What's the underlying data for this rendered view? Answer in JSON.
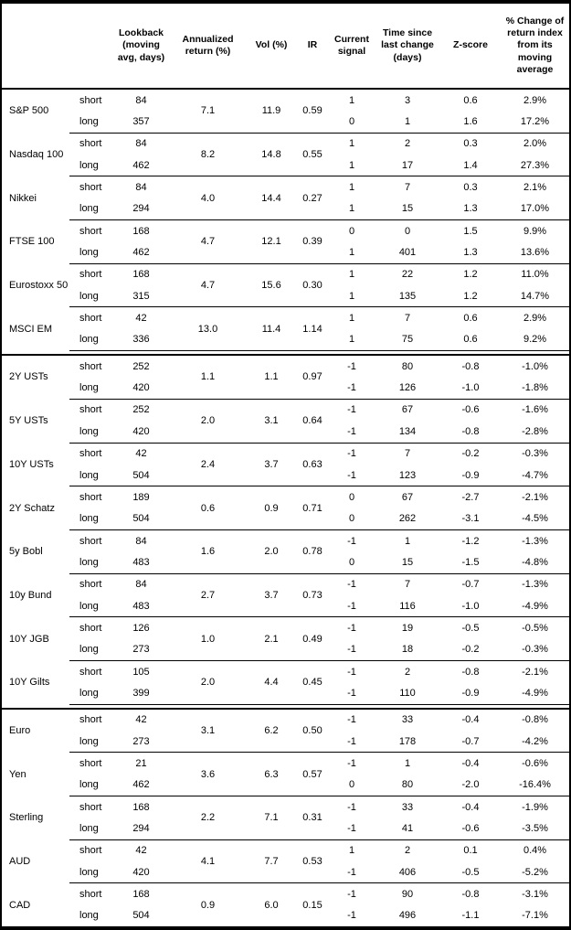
{
  "header": {
    "lookback": "Lookback (moving avg, days)",
    "annualized_return": "Annualized return (%)",
    "vol": "Vol (%)",
    "ir": "IR",
    "current_signal": "Current signal",
    "time_since": "Time since last change (days)",
    "zscore": "Z-score",
    "pct_change": "% Change of return index from its moving average"
  },
  "colors": {
    "border": "#000000",
    "text": "#000000",
    "background": "#ffffff"
  },
  "sections": [
    {
      "id": "equities",
      "assets": [
        {
          "name": "S&P 500",
          "ann_return": "7.1",
          "vol": "11.9",
          "ir": "0.59",
          "rows": [
            {
              "leg": "short",
              "lookback": "84",
              "signal": "1",
              "time": "3",
              "zscore": "0.6",
              "change": "2.9%"
            },
            {
              "leg": "long",
              "lookback": "357",
              "signal": "0",
              "time": "1",
              "zscore": "1.6",
              "change": "17.2%"
            }
          ]
        },
        {
          "name": "Nasdaq 100",
          "ann_return": "8.2",
          "vol": "14.8",
          "ir": "0.55",
          "rows": [
            {
              "leg": "short",
              "lookback": "84",
              "signal": "1",
              "time": "2",
              "zscore": "0.3",
              "change": "2.0%"
            },
            {
              "leg": "long",
              "lookback": "462",
              "signal": "1",
              "time": "17",
              "zscore": "1.4",
              "change": "27.3%"
            }
          ]
        },
        {
          "name": "Nikkei",
          "ann_return": "4.0",
          "vol": "14.4",
          "ir": "0.27",
          "rows": [
            {
              "leg": "short",
              "lookback": "84",
              "signal": "1",
              "time": "7",
              "zscore": "0.3",
              "change": "2.1%"
            },
            {
              "leg": "long",
              "lookback": "294",
              "signal": "1",
              "time": "15",
              "zscore": "1.3",
              "change": "17.0%"
            }
          ]
        },
        {
          "name": "FTSE 100",
          "ann_return": "4.7",
          "vol": "12.1",
          "ir": "0.39",
          "rows": [
            {
              "leg": "short",
              "lookback": "168",
              "signal": "0",
              "time": "0",
              "zscore": "1.5",
              "change": "9.9%"
            },
            {
              "leg": "long",
              "lookback": "462",
              "signal": "1",
              "time": "401",
              "zscore": "1.3",
              "change": "13.6%"
            }
          ]
        },
        {
          "name": "Eurostoxx 50",
          "ann_return": "4.7",
          "vol": "15.6",
          "ir": "0.30",
          "rows": [
            {
              "leg": "short",
              "lookback": "168",
              "signal": "1",
              "time": "22",
              "zscore": "1.2",
              "change": "11.0%"
            },
            {
              "leg": "long",
              "lookback": "315",
              "signal": "1",
              "time": "135",
              "zscore": "1.2",
              "change": "14.7%"
            }
          ]
        },
        {
          "name": "MSCI EM",
          "ann_return": "13.0",
          "vol": "11.4",
          "ir": "1.14",
          "rows": [
            {
              "leg": "short",
              "lookback": "42",
              "signal": "1",
              "time": "7",
              "zscore": "0.6",
              "change": "2.9%"
            },
            {
              "leg": "long",
              "lookback": "336",
              "signal": "1",
              "time": "75",
              "zscore": "0.6",
              "change": "9.2%"
            }
          ]
        }
      ]
    },
    {
      "id": "bonds",
      "assets": [
        {
          "name": "2Y USTs",
          "ann_return": "1.1",
          "vol": "1.1",
          "ir": "0.97",
          "rows": [
            {
              "leg": "short",
              "lookback": "252",
              "signal": "-1",
              "time": "80",
              "zscore": "-0.8",
              "change": "-1.0%"
            },
            {
              "leg": "long",
              "lookback": "420",
              "signal": "-1",
              "time": "126",
              "zscore": "-1.0",
              "change": "-1.8%"
            }
          ]
        },
        {
          "name": "5Y USTs",
          "ann_return": "2.0",
          "vol": "3.1",
          "ir": "0.64",
          "rows": [
            {
              "leg": "short",
              "lookback": "252",
              "signal": "-1",
              "time": "67",
              "zscore": "-0.6",
              "change": "-1.6%"
            },
            {
              "leg": "long",
              "lookback": "420",
              "signal": "-1",
              "time": "134",
              "zscore": "-0.8",
              "change": "-2.8%"
            }
          ]
        },
        {
          "name": "10Y USTs",
          "ann_return": "2.4",
          "vol": "3.7",
          "ir": "0.63",
          "rows": [
            {
              "leg": "short",
              "lookback": "42",
              "signal": "-1",
              "time": "7",
              "zscore": "-0.2",
              "change": "-0.3%"
            },
            {
              "leg": "long",
              "lookback": "504",
              "signal": "-1",
              "time": "123",
              "zscore": "-0.9",
              "change": "-4.7%"
            }
          ]
        },
        {
          "name": "2Y Schatz",
          "ann_return": "0.6",
          "vol": "0.9",
          "ir": "0.71",
          "rows": [
            {
              "leg": "short",
              "lookback": "189",
              "signal": "0",
              "time": "67",
              "zscore": "-2.7",
              "change": "-2.1%"
            },
            {
              "leg": "long",
              "lookback": "504",
              "signal": "0",
              "time": "262",
              "zscore": "-3.1",
              "change": "-4.5%"
            }
          ]
        },
        {
          "name": "5y Bobl",
          "ann_return": "1.6",
          "vol": "2.0",
          "ir": "0.78",
          "rows": [
            {
              "leg": "short",
              "lookback": "84",
              "signal": "-1",
              "time": "1",
              "zscore": "-1.2",
              "change": "-1.3%"
            },
            {
              "leg": "long",
              "lookback": "483",
              "signal": "0",
              "time": "15",
              "zscore": "-1.5",
              "change": "-4.8%"
            }
          ]
        },
        {
          "name": "10y Bund",
          "ann_return": "2.7",
          "vol": "3.7",
          "ir": "0.73",
          "rows": [
            {
              "leg": "short",
              "lookback": "84",
              "signal": "-1",
              "time": "7",
              "zscore": "-0.7",
              "change": "-1.3%"
            },
            {
              "leg": "long",
              "lookback": "483",
              "signal": "-1",
              "time": "116",
              "zscore": "-1.0",
              "change": "-4.9%"
            }
          ]
        },
        {
          "name": "10Y JGB",
          "ann_return": "1.0",
          "vol": "2.1",
          "ir": "0.49",
          "rows": [
            {
              "leg": "short",
              "lookback": "126",
              "signal": "-1",
              "time": "19",
              "zscore": "-0.5",
              "change": "-0.5%"
            },
            {
              "leg": "long",
              "lookback": "273",
              "signal": "-1",
              "time": "18",
              "zscore": "-0.2",
              "change": "-0.3%"
            }
          ]
        },
        {
          "name": "10Y Gilts",
          "ann_return": "2.0",
          "vol": "4.4",
          "ir": "0.45",
          "rows": [
            {
              "leg": "short",
              "lookback": "105",
              "signal": "-1",
              "time": "2",
              "zscore": "-0.8",
              "change": "-2.1%"
            },
            {
              "leg": "long",
              "lookback": "399",
              "signal": "-1",
              "time": "110",
              "zscore": "-0.9",
              "change": "-4.9%"
            }
          ]
        }
      ]
    },
    {
      "id": "currencies",
      "assets": [
        {
          "name": "Euro",
          "ann_return": "3.1",
          "vol": "6.2",
          "ir": "0.50",
          "rows": [
            {
              "leg": "short",
              "lookback": "42",
              "signal": "-1",
              "time": "33",
              "zscore": "-0.4",
              "change": "-0.8%"
            },
            {
              "leg": "long",
              "lookback": "273",
              "signal": "-1",
              "time": "178",
              "zscore": "-0.7",
              "change": "-4.2%"
            }
          ]
        },
        {
          "name": "Yen",
          "ann_return": "3.6",
          "vol": "6.3",
          "ir": "0.57",
          "rows": [
            {
              "leg": "short",
              "lookback": "21",
              "signal": "-1",
              "time": "1",
              "zscore": "-0.4",
              "change": "-0.6%"
            },
            {
              "leg": "long",
              "lookback": "462",
              "signal": "0",
              "time": "80",
              "zscore": "-2.0",
              "change": "-16.4%"
            }
          ]
        },
        {
          "name": "Sterling",
          "ann_return": "2.2",
          "vol": "7.1",
          "ir": "0.31",
          "rows": [
            {
              "leg": "short",
              "lookback": "168",
              "signal": "-1",
              "time": "33",
              "zscore": "-0.4",
              "change": "-1.9%"
            },
            {
              "leg": "long",
              "lookback": "294",
              "signal": "-1",
              "time": "41",
              "zscore": "-0.6",
              "change": "-3.5%"
            }
          ]
        },
        {
          "name": "AUD",
          "ann_return": "4.1",
          "vol": "7.7",
          "ir": "0.53",
          "rows": [
            {
              "leg": "short",
              "lookback": "42",
              "signal": "1",
              "time": "2",
              "zscore": "0.1",
              "change": "0.4%"
            },
            {
              "leg": "long",
              "lookback": "420",
              "signal": "-1",
              "time": "406",
              "zscore": "-0.5",
              "change": "-5.2%"
            }
          ]
        },
        {
          "name": "CAD",
          "ann_return": "0.9",
          "vol": "6.0",
          "ir": "0.15",
          "rows": [
            {
              "leg": "short",
              "lookback": "168",
              "signal": "-1",
              "time": "90",
              "zscore": "-0.8",
              "change": "-3.1%"
            },
            {
              "leg": "long",
              "lookback": "504",
              "signal": "-1",
              "time": "496",
              "zscore": "-1.1",
              "change": "-7.1%"
            }
          ]
        }
      ]
    }
  ]
}
